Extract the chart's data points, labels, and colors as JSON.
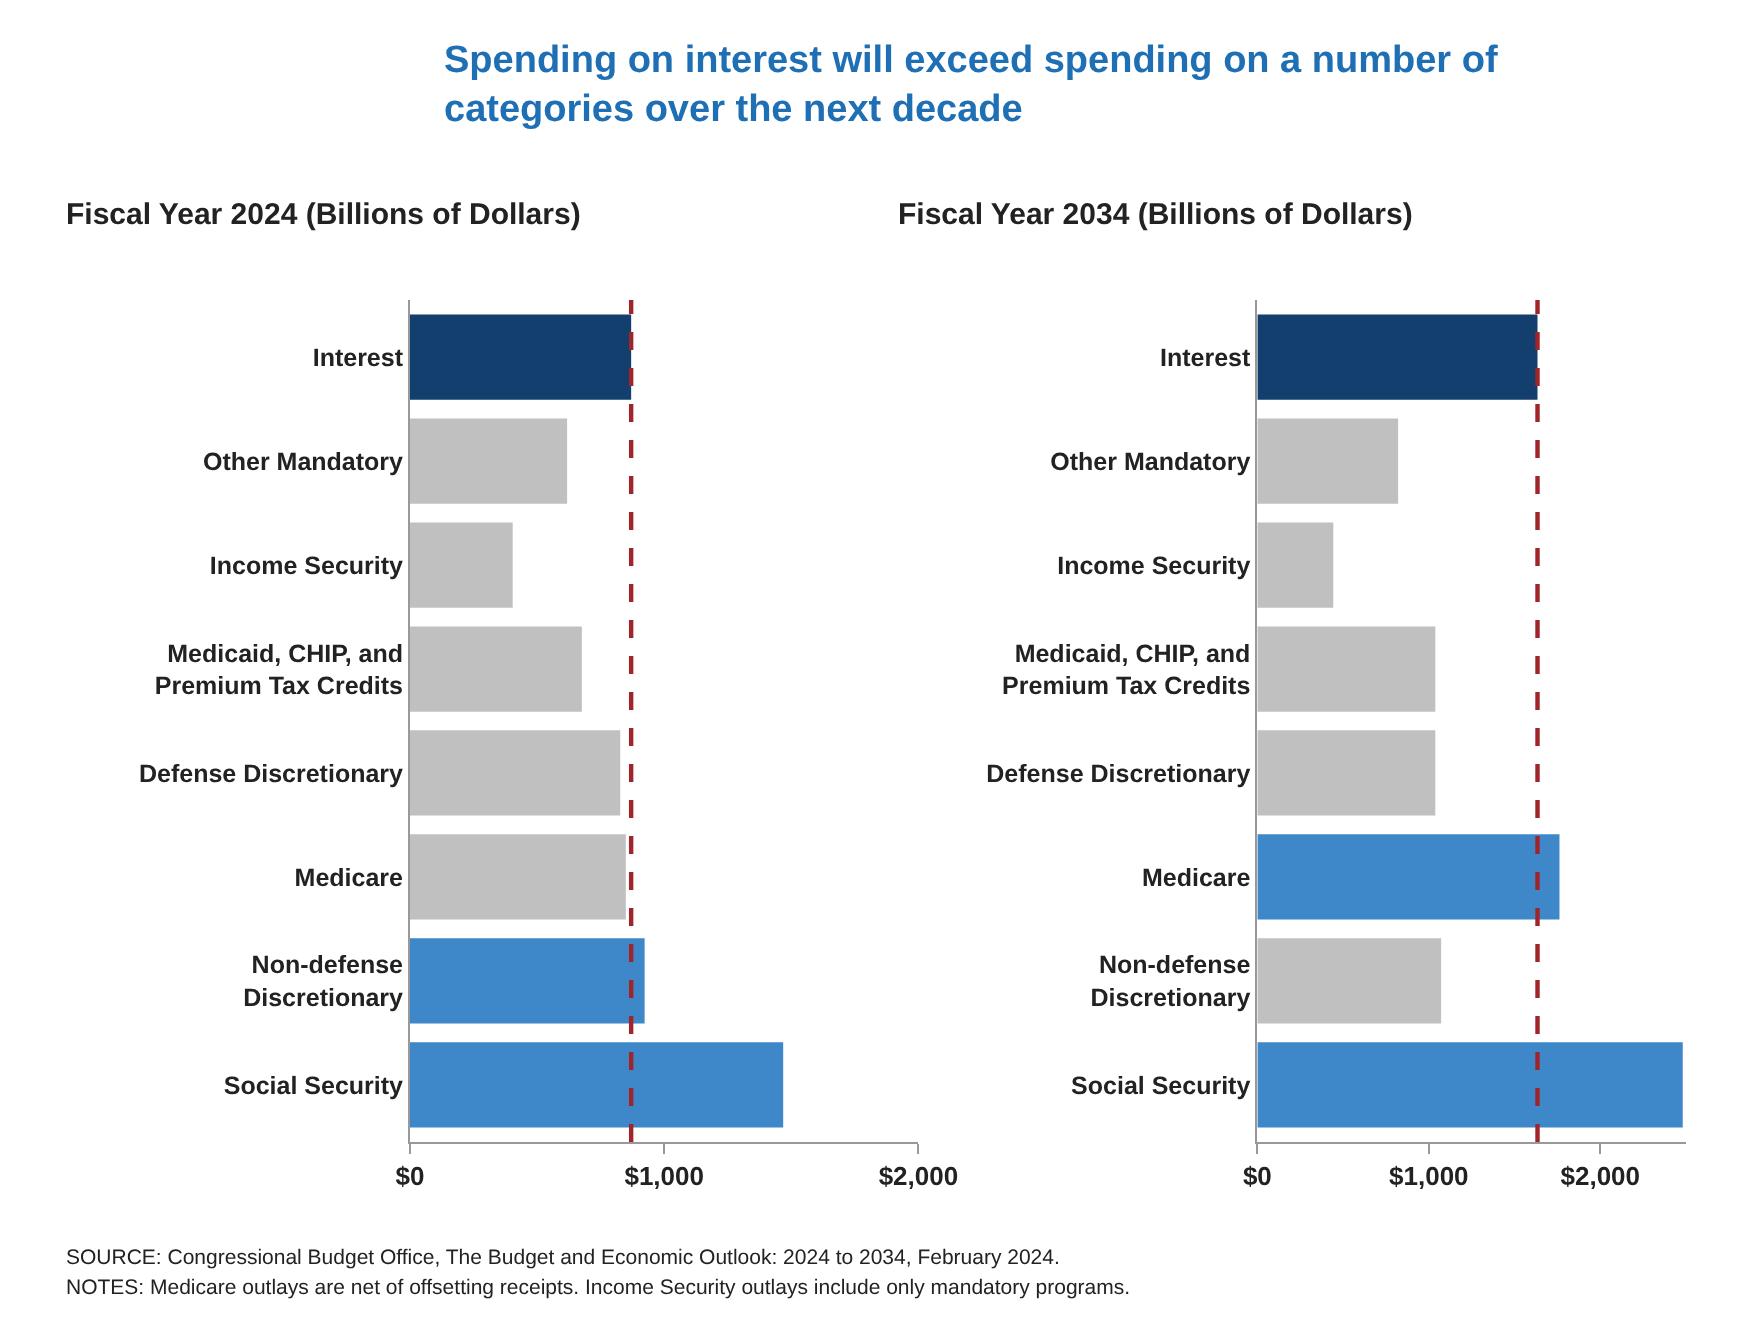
{
  "chart_data": [
    {
      "type": "bar",
      "orientation": "horizontal",
      "title": "Spending on interest will exceed spending on a number of\ncategories over the next decade",
      "subtitle": "Fiscal Year 2024 (Billions of Dollars)",
      "categories": [
        "Interest",
        "Other Mandatory",
        "Income Security",
        "Medicaid, CHIP, and\nPremium Tax Credits",
        "Defense Discretionary",
        "Medicare",
        "Non-defense\nDiscretionary",
        "Social Security"
      ],
      "values": [
        870,
        618,
        404,
        676,
        827,
        849,
        923,
        1468
      ],
      "colors": [
        "#123f6d",
        "#c0c0c0",
        "#c0c0c0",
        "#c0c0c0",
        "#c0c0c0",
        "#c0c0c0",
        "#3e87c8",
        "#3e87c8"
      ],
      "xlim": [
        0,
        2000
      ],
      "xticks": [
        {
          "value": 0,
          "label": "$0"
        },
        {
          "value": 1000,
          "label": "$1,000"
        },
        {
          "value": 2000,
          "label": "$2,000"
        }
      ],
      "ref_lines": [
        {
          "axis": "x",
          "value": 870,
          "color": "#a0252b",
          "line_style": "dashed"
        }
      ],
      "annotations": [
        "SOURCE: Congressional Budget Office, The Budget and Economic Outlook: 2024 to 2034, February 2024.",
        "NOTES: Medicare outlays are net of offsetting receipts. Income Security outlays include only mandatory programs."
      ]
    },
    {
      "type": "bar",
      "orientation": "horizontal",
      "subtitle": "Fiscal Year 2034 (Billions of Dollars)",
      "categories": [
        "Interest",
        "Other Mandatory",
        "Income Security",
        "Medicaid, CHIP, and\nPremium Tax Credits",
        "Defense Discretionary",
        "Medicare",
        "Non-defense\nDiscretionary",
        "Social Security"
      ],
      "values": [
        1634,
        821,
        443,
        1038,
        1038,
        1762,
        1072,
        2481
      ],
      "colors": [
        "#123f6d",
        "#c0c0c0",
        "#c0c0c0",
        "#c0c0c0",
        "#c0c0c0",
        "#3e87c8",
        "#c0c0c0",
        "#3e87c8"
      ],
      "xlim": [
        0,
        2500
      ],
      "xticks": [
        {
          "value": 0,
          "label": "$0"
        },
        {
          "value": 1000,
          "label": "$1,000"
        },
        {
          "value": 2000,
          "label": "$2,000"
        }
      ],
      "ref_lines": [
        {
          "axis": "x",
          "value": 1634,
          "color": "#a0252b",
          "line_style": "dashed"
        }
      ]
    }
  ]
}
